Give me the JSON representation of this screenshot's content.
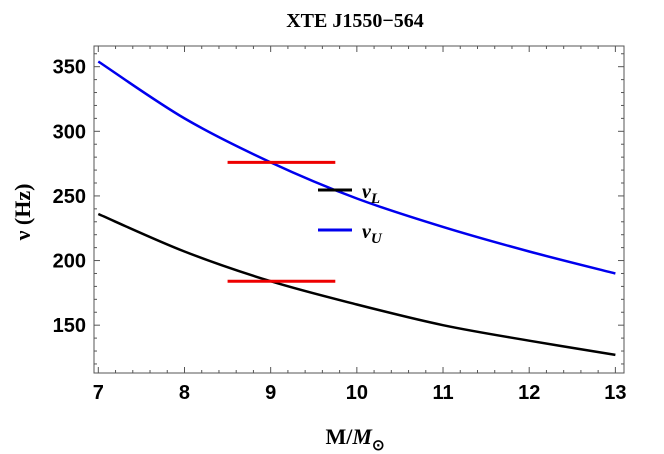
{
  "chart_data": {
    "type": "line",
    "title": "XTE J1550−564",
    "xlabel": "M/M⊙",
    "ylabel": "ν (Hz)",
    "xlim": [
      6.95,
      13.1
    ],
    "ylim": [
      113,
      366
    ],
    "xticks": [
      7,
      8,
      9,
      10,
      11,
      12,
      13
    ],
    "yticks": [
      150,
      200,
      250,
      300,
      350
    ],
    "grid": false,
    "legend_position": "center",
    "series": [
      {
        "name": "νL",
        "color": "#000000",
        "x": [
          7,
          8,
          9,
          10,
          11,
          12,
          13
        ],
        "y": [
          236,
          207,
          184,
          166,
          150,
          138,
          127
        ]
      },
      {
        "name": "νU",
        "color": "#0000ee",
        "x": [
          7,
          8,
          9,
          10,
          11,
          12,
          13
        ],
        "y": [
          354,
          310,
          276,
          248,
          226,
          207,
          190
        ]
      }
    ],
    "observed_bands": [
      {
        "y": 276,
        "x_range": [
          8.5,
          9.75
        ],
        "color": "#ee0000"
      },
      {
        "y": 184,
        "x_range": [
          8.5,
          9.75
        ],
        "color": "#ee0000"
      }
    ]
  }
}
